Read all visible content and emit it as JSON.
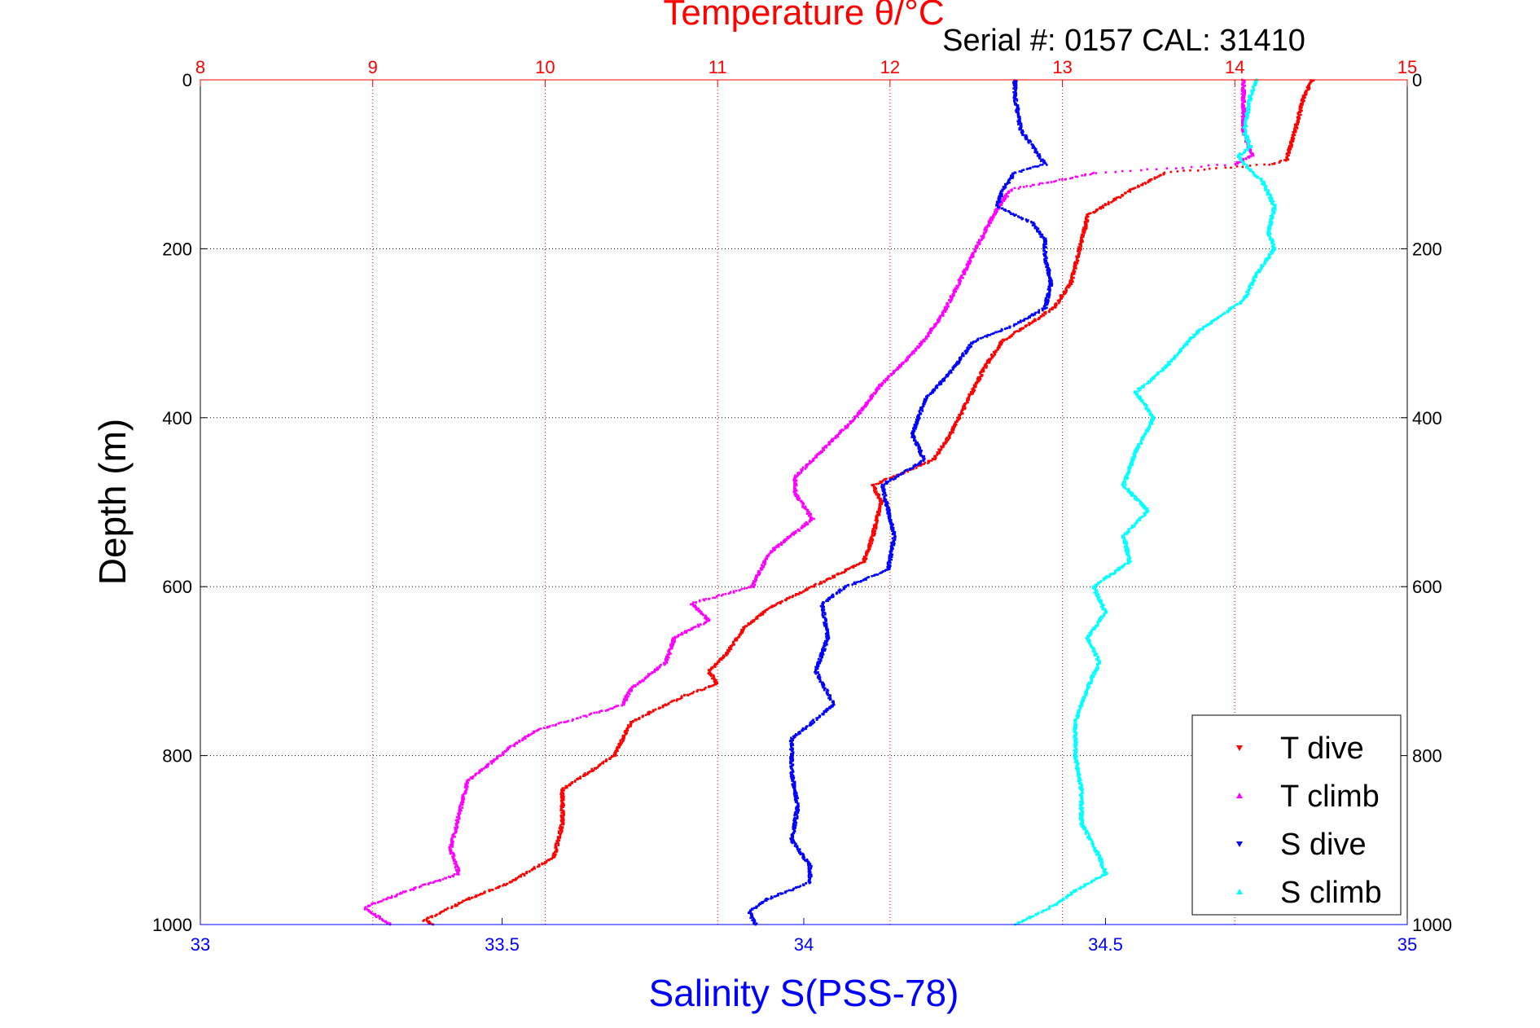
{
  "chart_data": {
    "type": "scatter",
    "title": "Temperature θ/°C",
    "subtitle": "Serial #: 0157  CAL: 31410",
    "ylabel": "Depth (m)",
    "xlabel_bottom": "Salinity S(PSS-78)",
    "grid": true,
    "legend_placement": "bottom-right",
    "y_axis": {
      "range": [
        0,
        1000
      ],
      "reversed": true,
      "ticks": [
        0,
        200,
        400,
        600,
        800,
        1000
      ]
    },
    "x_axis_top": {
      "quantity": "temperature",
      "range": [
        8,
        15
      ],
      "ticks": [
        8,
        9,
        10,
        11,
        12,
        13,
        14,
        15
      ],
      "color": "#ff0000"
    },
    "x_axis_bottom": {
      "quantity": "salinity",
      "range": [
        33,
        35
      ],
      "ticks": [
        33,
        33.5,
        34,
        34.5,
        35
      ],
      "color": "#0000ff"
    },
    "colors": {
      "title": "#ff0000",
      "salinity_axis": "#0000ff",
      "text": "#000000"
    },
    "series": [
      {
        "name": "T dive",
        "axis": "top",
        "color": "#ff0000",
        "marker": "triangle-down",
        "depth": [
          0,
          20,
          60,
          95,
          100,
          110,
          130,
          160,
          200,
          240,
          270,
          290,
          310,
          340,
          380,
          420,
          450,
          480,
          500,
          540,
          570,
          600,
          625,
          650,
          680,
          700,
          715,
          730,
          760,
          800,
          840,
          880,
          920,
          950,
          970,
          985,
          995,
          1000
        ],
        "values": [
          14.45,
          14.4,
          14.35,
          14.3,
          14.2,
          13.6,
          13.4,
          13.15,
          13.1,
          13.05,
          12.95,
          12.8,
          12.65,
          12.55,
          12.45,
          12.35,
          12.25,
          11.9,
          11.95,
          11.9,
          11.85,
          11.55,
          11.3,
          11.15,
          11.05,
          10.95,
          11,
          10.8,
          10.5,
          10.4,
          10.1,
          10.1,
          10.05,
          9.8,
          9.55,
          9.4,
          9.3,
          9.35
        ]
      },
      {
        "name": "T climb",
        "axis": "top",
        "color": "#ff00ff",
        "marker": "triangle-up",
        "depth": [
          0,
          20,
          60,
          80,
          90,
          100,
          110,
          130,
          160,
          200,
          240,
          280,
          320,
          360,
          400,
          440,
          470,
          490,
          520,
          560,
          580,
          600,
          620,
          640,
          660,
          690,
          720,
          740,
          770,
          790,
          830,
          870,
          910,
          940,
          960,
          980,
          1000
        ],
        "values": [
          14.05,
          14.05,
          14.05,
          14.08,
          14.1,
          14,
          13.2,
          12.7,
          12.6,
          12.5,
          12.4,
          12.3,
          12.15,
          11.95,
          11.8,
          11.6,
          11.45,
          11.45,
          11.55,
          11.3,
          11.25,
          11.2,
          10.85,
          10.95,
          10.75,
          10.7,
          10.5,
          10.45,
          9.95,
          9.8,
          9.55,
          9.5,
          9.45,
          9.5,
          9.2,
          8.95,
          9.1
        ]
      },
      {
        "name": "S dive",
        "axis": "bottom",
        "color": "#0000ff",
        "marker": "triangle-down",
        "depth": [
          0,
          20,
          60,
          80,
          100,
          110,
          130,
          150,
          170,
          190,
          210,
          240,
          270,
          290,
          310,
          340,
          380,
          420,
          450,
          480,
          510,
          540,
          580,
          600,
          620,
          660,
          700,
          740,
          780,
          820,
          860,
          900,
          930,
          950,
          970,
          985,
          1000
        ],
        "values": [
          34.35,
          34.35,
          34.36,
          34.38,
          34.4,
          34.35,
          34.33,
          34.32,
          34.38,
          34.4,
          34.4,
          34.41,
          34.4,
          34.35,
          34.28,
          34.25,
          34.2,
          34.18,
          34.2,
          34.13,
          34.14,
          34.15,
          34.14,
          34.07,
          34.03,
          34.04,
          34.02,
          34.05,
          33.98,
          33.98,
          33.99,
          33.98,
          34.01,
          34.01,
          33.94,
          33.91,
          33.92
        ]
      },
      {
        "name": "S climb",
        "axis": "bottom",
        "color": "#00ffff",
        "marker": "triangle-up",
        "depth": [
          0,
          20,
          60,
          80,
          90,
          100,
          120,
          150,
          180,
          200,
          230,
          260,
          300,
          340,
          370,
          400,
          440,
          480,
          510,
          540,
          570,
          600,
          630,
          660,
          690,
          720,
          760,
          800,
          840,
          880,
          920,
          940,
          960,
          975,
          990,
          1000
        ],
        "values": [
          34.75,
          34.74,
          34.73,
          34.74,
          34.72,
          34.73,
          34.76,
          34.78,
          34.77,
          34.78,
          34.75,
          34.73,
          34.65,
          34.6,
          34.55,
          34.58,
          34.55,
          34.53,
          34.57,
          34.53,
          34.54,
          34.48,
          34.5,
          34.47,
          34.49,
          34.47,
          34.45,
          34.45,
          34.46,
          34.46,
          34.49,
          34.5,
          34.45,
          34.42,
          34.38,
          34.35
        ]
      }
    ]
  }
}
